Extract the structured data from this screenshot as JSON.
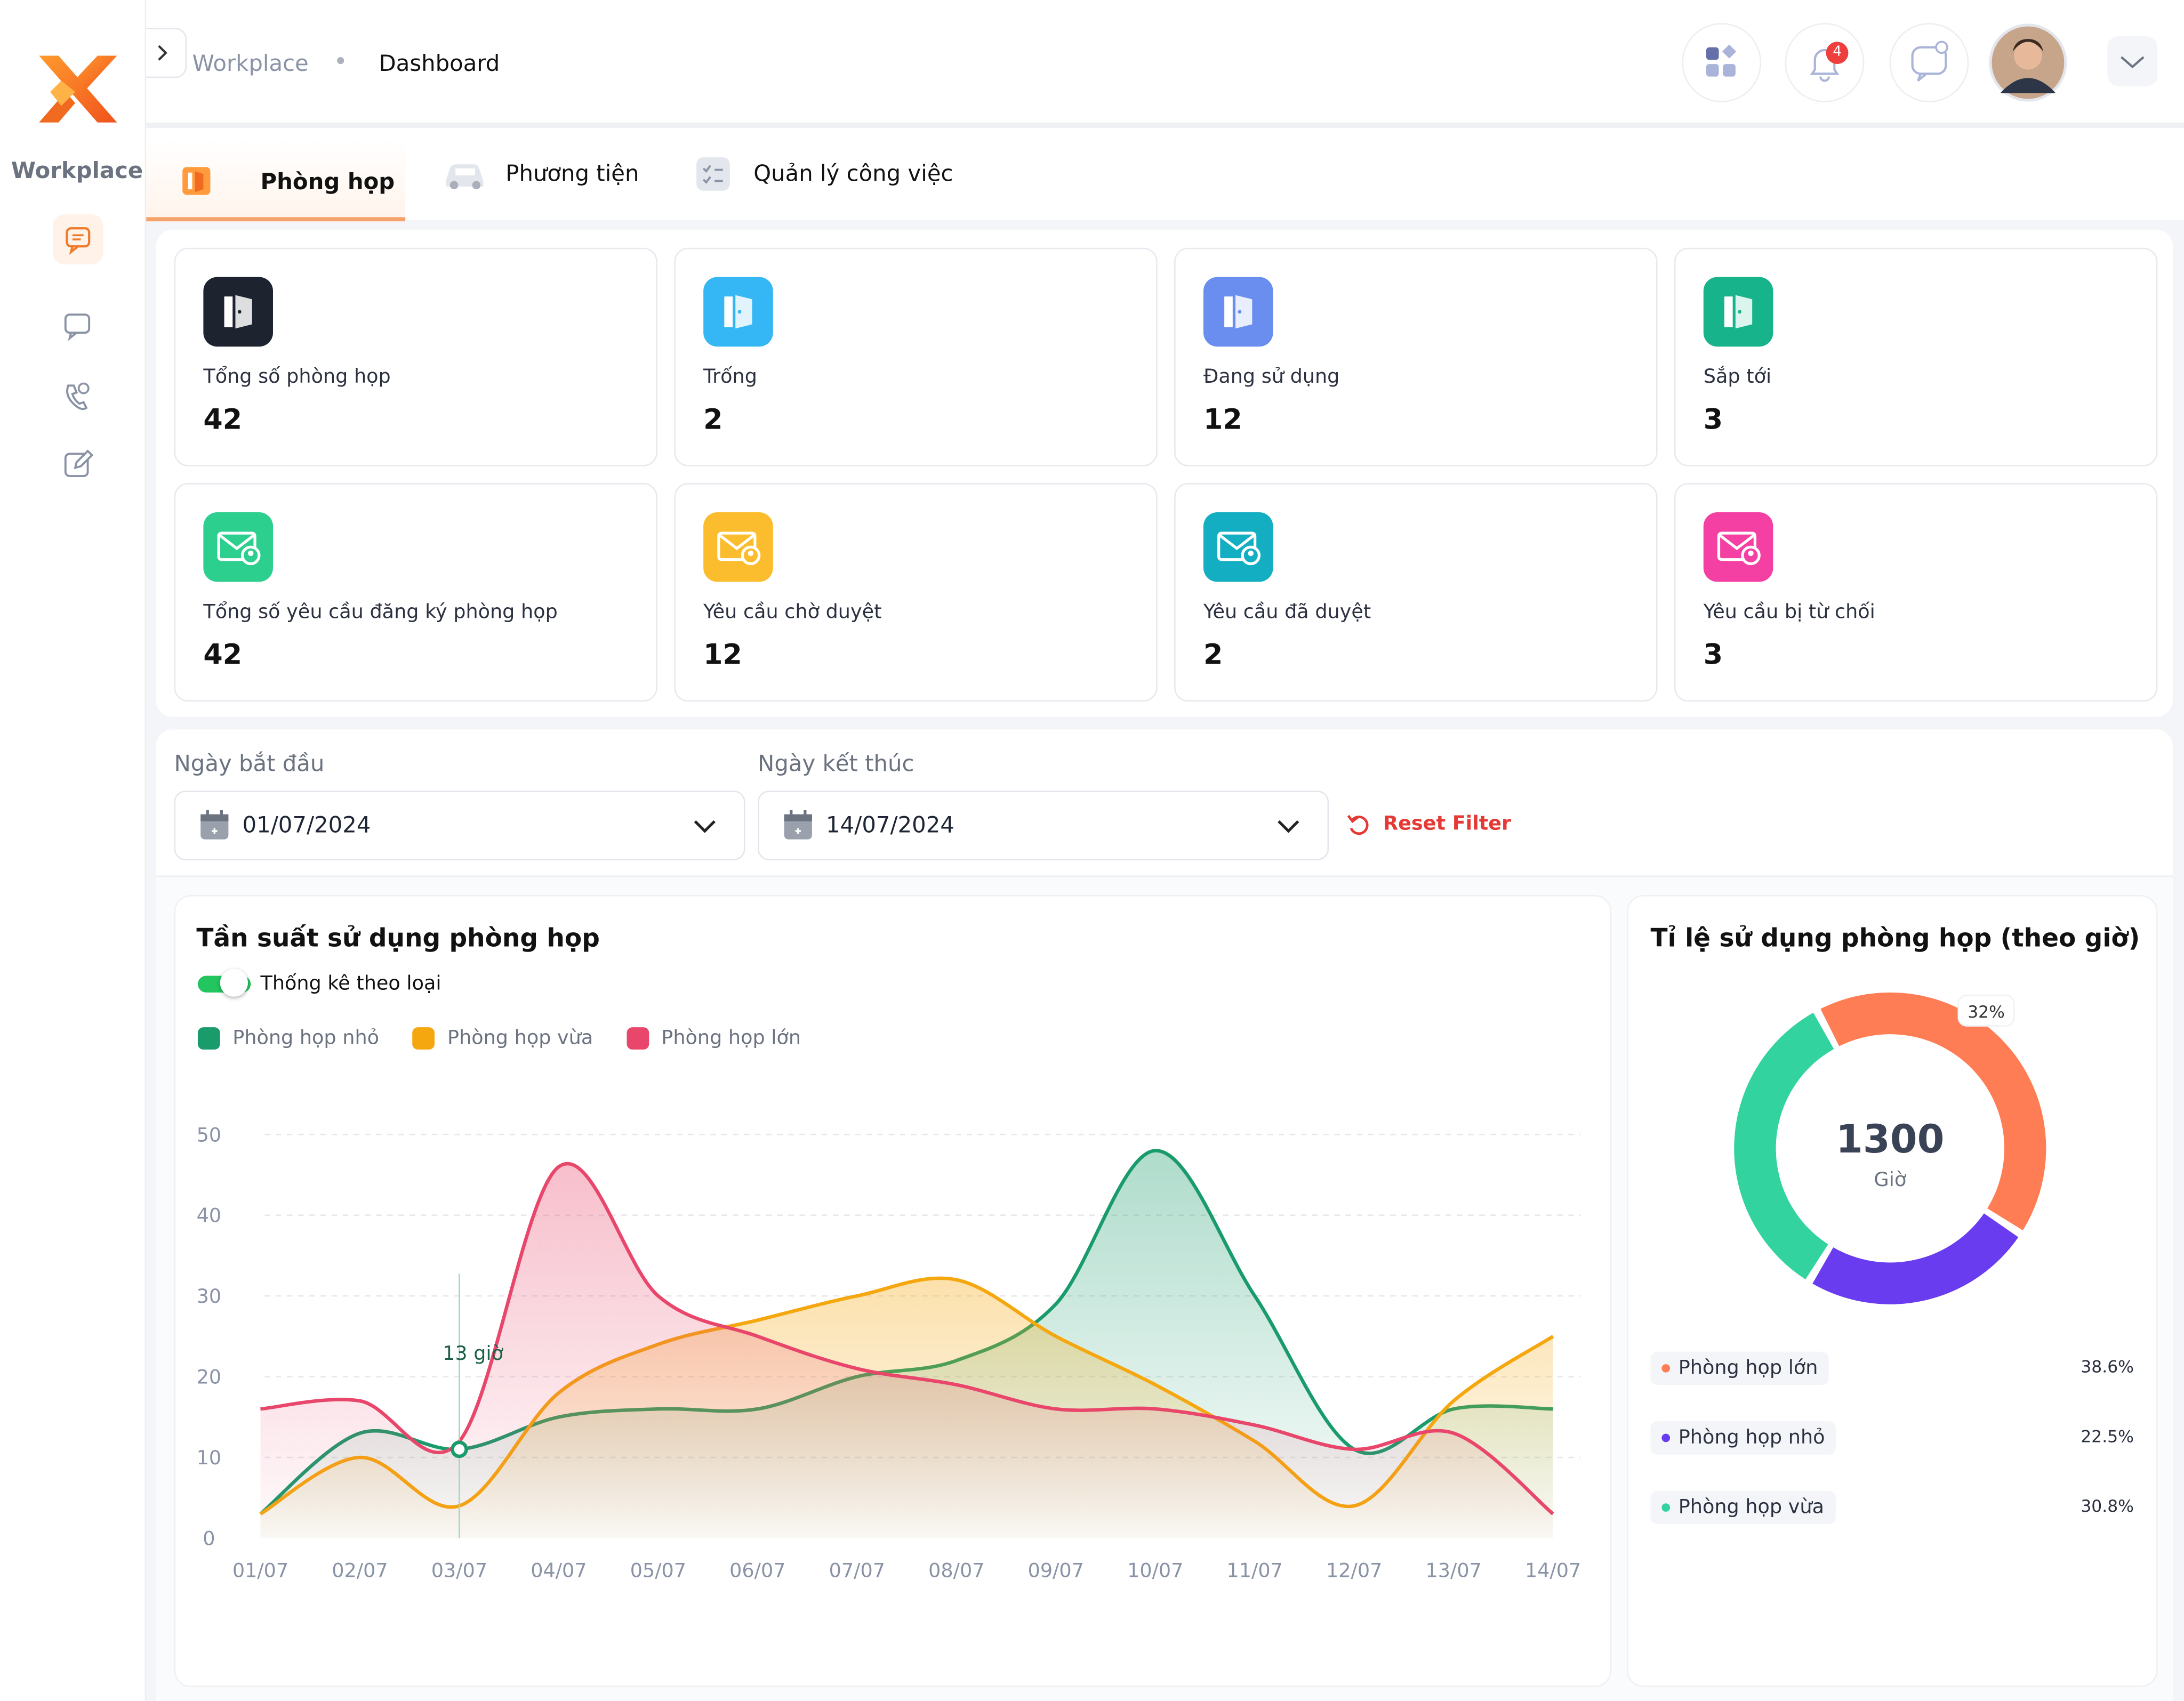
{
  "sidebar": {
    "brand": "Workplace"
  },
  "header": {
    "breadcrumb": [
      "Workplace",
      "Dashboard"
    ],
    "notification_count": 4
  },
  "tabs": [
    "Phòng họp",
    "Phương tiện",
    "Quản lý công việc"
  ],
  "stats": [
    {
      "label": "Tổng số phòng họp",
      "value": 42
    },
    {
      "label": "Trống",
      "value": 2
    },
    {
      "label": "Đang sử dụng",
      "value": 12
    },
    {
      "label": "Sắp tới",
      "value": 3
    },
    {
      "label": "Tổng số yêu cầu đăng ký phòng họp",
      "value": 42
    },
    {
      "label": "Yêu cầu chờ duyệt",
      "value": 12
    },
    {
      "label": "Yêu cầu đã duyệt",
      "value": 2
    },
    {
      "label": "Yêu cầu bị từ chối",
      "value": 3
    }
  ],
  "filters": {
    "start_label": "Ngày bắt đầu",
    "start": "01/07/2024",
    "end_label": "Ngày kết thúc",
    "end": "14/07/2024",
    "reset": "Reset Filter"
  },
  "chart_data": [
    {
      "type": "line",
      "title": "Tần suất sử dụng phòng họp",
      "toggle_label": "Thống kê theo loại",
      "categories": [
        "01/07",
        "02/07",
        "03/07",
        "04/07",
        "05/07",
        "06/07",
        "07/07",
        "08/07",
        "09/07",
        "10/07",
        "11/07",
        "12/07",
        "13/07",
        "14/07"
      ],
      "series": [
        {
          "name": "Phòng họp nhỏ",
          "color": "#1a9b6c",
          "values": [
            3,
            13,
            11,
            15,
            16,
            16,
            20,
            22,
            29,
            48,
            30,
            11,
            16,
            16
          ]
        },
        {
          "name": "Phòng họp vừa",
          "color": "#f5a70f",
          "values": [
            3,
            10,
            4,
            18,
            24,
            27,
            30,
            32,
            25,
            19,
            12,
            4,
            17,
            25
          ]
        },
        {
          "name": "Phòng họp lớn",
          "color": "#e8476b",
          "values": [
            16,
            17,
            12,
            46,
            30,
            25,
            21,
            19,
            16,
            16,
            14,
            11,
            13,
            3
          ]
        }
      ],
      "ylim": [
        0,
        50
      ],
      "yticks": [
        0,
        10,
        20,
        30,
        40,
        50
      ],
      "grid": true,
      "annotation": {
        "text": "13 giờ",
        "x": "03/07"
      }
    },
    {
      "type": "donut",
      "title": "Tỉ lệ sử dụng phòng họp (theo giờ)",
      "center_value": 1300,
      "center_label": "Giờ",
      "annotation": "32%",
      "categories": [
        "Phòng họp lớn",
        "Phòng họp nhỏ",
        "Phòng họp vừa"
      ],
      "values": [
        38.6,
        22.5,
        30.8
      ],
      "value_labels": [
        "38.6%",
        "22.5%",
        "30.8%"
      ],
      "colors": [
        "#ff7d54",
        "#6a3cf0",
        "#33d39f"
      ]
    }
  ]
}
